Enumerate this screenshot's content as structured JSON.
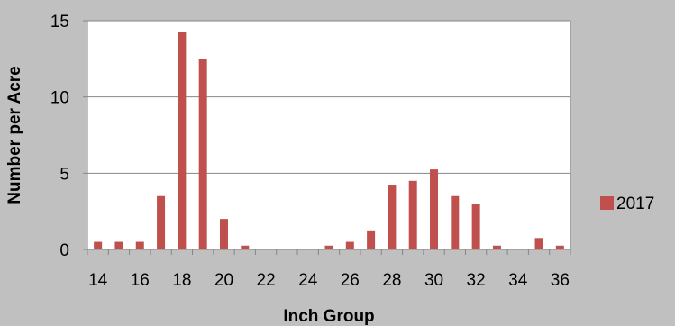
{
  "chart_data": {
    "type": "bar",
    "title": "",
    "xlabel": "Inch Group",
    "ylabel": "Number per Acre",
    "ylim": [
      0,
      15
    ],
    "yticks": [
      0,
      5,
      10,
      15
    ],
    "x": [
      14,
      15,
      16,
      17,
      18,
      19,
      20,
      21,
      22,
      23,
      24,
      25,
      26,
      27,
      28,
      29,
      30,
      31,
      32,
      33,
      34,
      35,
      36
    ],
    "xtick_labels": [
      "14",
      "16",
      "18",
      "20",
      "22",
      "24",
      "26",
      "28",
      "30",
      "32",
      "34",
      "36"
    ],
    "series": [
      {
        "name": "2017",
        "color": "#c0504d",
        "values": [
          0.5,
          0.5,
          0.5,
          3.5,
          14.25,
          12.5,
          2.0,
          0.25,
          0,
          0,
          0,
          0.25,
          0.5,
          1.25,
          4.25,
          4.5,
          5.25,
          3.5,
          3.0,
          0.25,
          0,
          0.75,
          0.25
        ]
      }
    ],
    "grid": true,
    "legend_position": "right",
    "plot_background": "#ffffff",
    "chart_background": "#c0c0c0"
  }
}
